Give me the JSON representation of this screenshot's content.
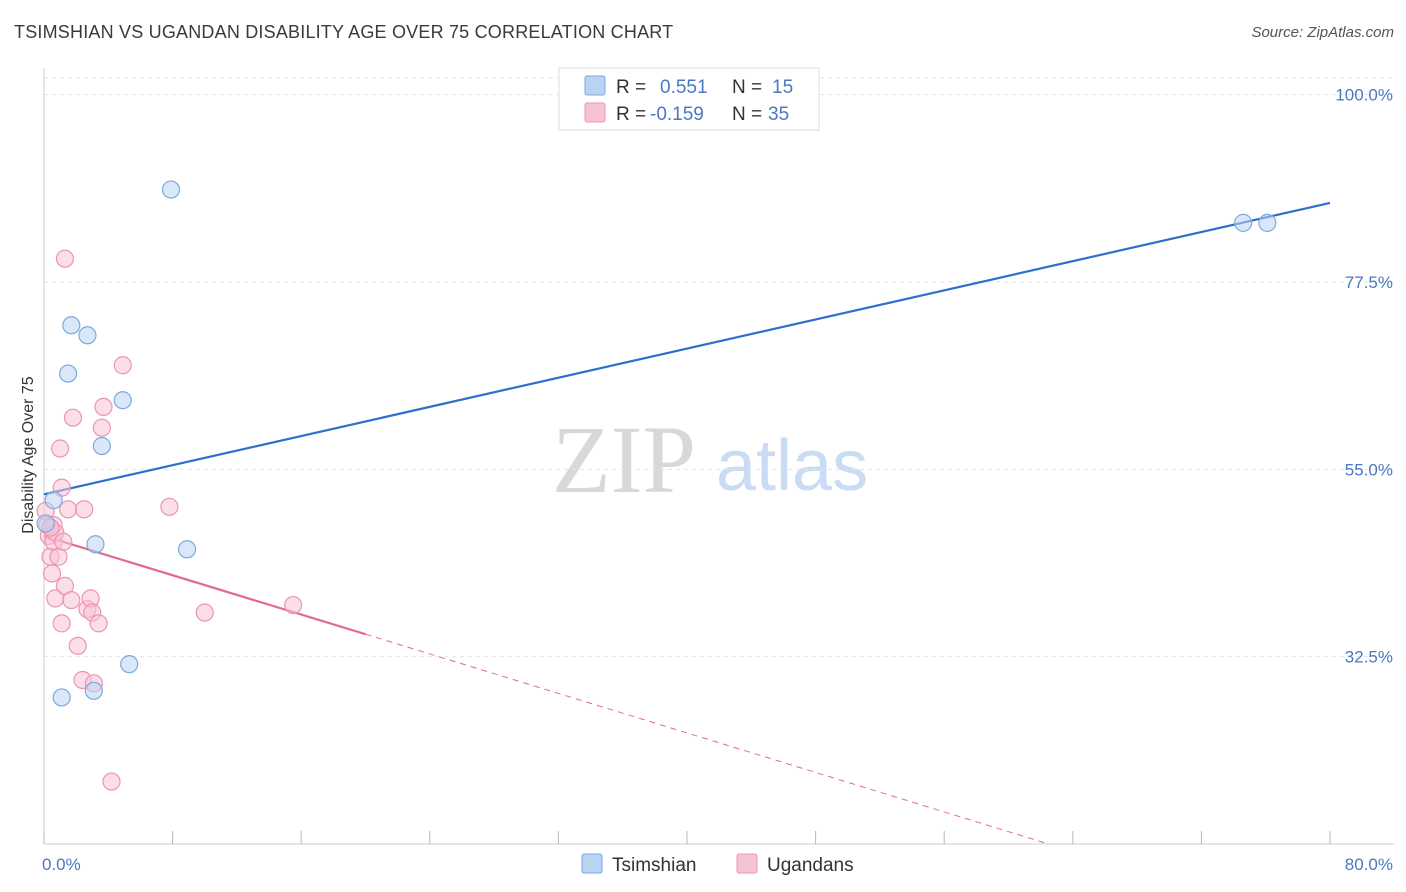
{
  "title": "TSIMSHIAN VS UGANDAN DISABILITY AGE OVER 75 CORRELATION CHART",
  "source": "Source: ZipAtlas.com",
  "watermark": {
    "zip": "ZIP",
    "atlas": "atlas"
  },
  "colors": {
    "blue": "#4a78c2",
    "blue_fill": "#b9d4f3",
    "blue_stroke": "#7aaae0",
    "blue_line": "#2f6fcc",
    "pink_fill": "#f7c3d3",
    "pink_stroke": "#eb95b1",
    "pink_line": "#e06b95",
    "grid": "#e3e3e3"
  },
  "legend_top": [
    {
      "r_label": "R =",
      "r_value": "0.551",
      "n_label": "N =",
      "n_value": "15",
      "series": "Tsimshian"
    },
    {
      "r_label": "R =",
      "r_value": "-0.159",
      "n_label": "N =",
      "n_value": "35",
      "series": "Ugandans"
    }
  ],
  "chart_data": {
    "type": "scatter",
    "title": "TSIMSHIAN VS UGANDAN DISABILITY AGE OVER 75 CORRELATION CHART",
    "xlabel": "",
    "ylabel": "Disability Age Over 75",
    "xlim": [
      0,
      80
    ],
    "ylim": [
      10,
      102
    ],
    "x_tick_labels": [
      "0.0%",
      "80.0%"
    ],
    "y_ticks": [
      32.5,
      55.0,
      77.5,
      100.0
    ],
    "y_tick_labels": [
      "32.5%",
      "55.0%",
      "77.5%",
      "100.0%"
    ],
    "grid": true,
    "legend": "bottom-center",
    "series": [
      {
        "name": "Tsimshian",
        "points": [
          [
            0.1,
            48.5
          ],
          [
            0.6,
            51.3
          ],
          [
            1.1,
            27.6
          ],
          [
            1.5,
            66.5
          ],
          [
            1.7,
            72.3
          ],
          [
            2.7,
            71.1
          ],
          [
            3.1,
            28.4
          ],
          [
            3.2,
            46.0
          ],
          [
            3.6,
            57.8
          ],
          [
            4.9,
            63.3
          ],
          [
            5.3,
            31.6
          ],
          [
            7.9,
            88.6
          ],
          [
            8.9,
            45.4
          ],
          [
            74.6,
            84.6
          ],
          [
            76.1,
            84.6
          ]
        ],
        "trend": {
          "x": [
            0,
            80
          ],
          "y": [
            52.0,
            87.0
          ]
        }
      },
      {
        "name": "Ugandans",
        "points": [
          [
            0.1,
            50.0
          ],
          [
            0.2,
            48.3
          ],
          [
            0.3,
            47.0
          ],
          [
            0.4,
            44.5
          ],
          [
            0.5,
            42.5
          ],
          [
            0.6,
            46.3
          ],
          [
            0.6,
            48.3
          ],
          [
            0.7,
            39.5
          ],
          [
            0.7,
            47.4
          ],
          [
            0.9,
            44.5
          ],
          [
            1.0,
            57.5
          ],
          [
            1.1,
            52.8
          ],
          [
            1.1,
            36.5
          ],
          [
            1.2,
            46.3
          ],
          [
            1.3,
            41.0
          ],
          [
            1.3,
            80.3
          ],
          [
            1.5,
            50.2
          ],
          [
            1.7,
            39.3
          ],
          [
            1.8,
            61.2
          ],
          [
            2.1,
            33.8
          ],
          [
            2.4,
            29.7
          ],
          [
            2.5,
            50.2
          ],
          [
            2.7,
            38.2
          ],
          [
            2.9,
            39.5
          ],
          [
            3.0,
            37.8
          ],
          [
            3.1,
            29.3
          ],
          [
            3.4,
            36.5
          ],
          [
            3.6,
            60.0
          ],
          [
            3.7,
            62.5
          ],
          [
            4.2,
            17.5
          ],
          [
            4.9,
            67.5
          ],
          [
            7.8,
            50.5
          ],
          [
            10.0,
            37.8
          ],
          [
            15.5,
            38.7
          ],
          [
            0.4,
            48.0
          ]
        ],
        "trend": {
          "x": [
            0,
            20
          ],
          "y": [
            47.0,
            35.2
          ]
        },
        "trend_extension": {
          "x": [
            20,
            62.5
          ],
          "y": [
            35.2,
            10.0
          ]
        }
      }
    ]
  }
}
